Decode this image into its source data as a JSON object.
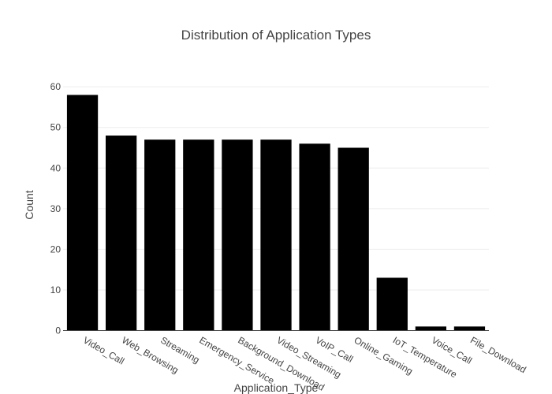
{
  "chart_data": {
    "type": "bar",
    "title": "Distribution of Application Types",
    "xlabel": "Application_Type",
    "ylabel": "Count",
    "categories": [
      "Video_Call",
      "Web_Browsing",
      "Streaming",
      "Emergency_Service",
      "Background_Download",
      "Video_Streaming",
      "VoIP_Call",
      "Online_Gaming",
      "IoT_Temperature",
      "Voice_Call",
      "File_Download"
    ],
    "values": [
      58,
      48,
      47,
      47,
      47,
      47,
      46,
      45,
      13,
      1,
      1
    ],
    "ylim": [
      0,
      61
    ],
    "yticks": [
      0,
      10,
      20,
      30,
      40,
      50,
      60
    ],
    "grid": true,
    "bar_color": "#000000"
  }
}
